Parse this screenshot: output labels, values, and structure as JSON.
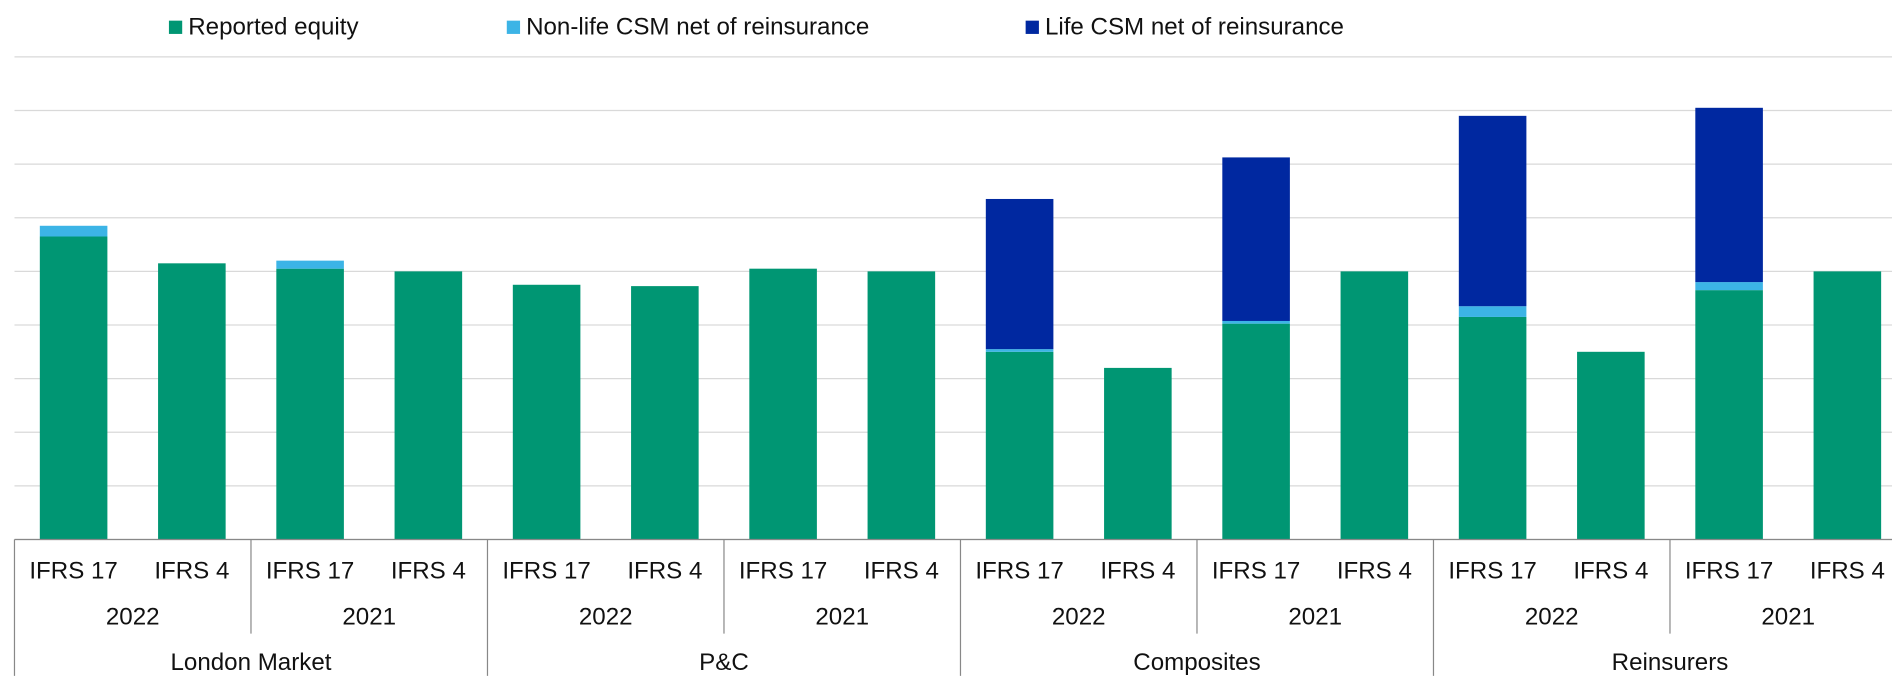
{
  "chart_data": {
    "type": "stacked-bar",
    "categories": [
      "IFRS 17",
      "IFRS 4",
      "IFRS 17",
      "IFRS 4",
      "IFRS 17",
      "IFRS 4",
      "IFRS 17",
      "IFRS 4",
      "IFRS 17",
      "IFRS 4",
      "IFRS 17",
      "IFRS 4",
      "IFRS 17",
      "IFRS 4",
      "IFRS 17",
      "IFRS 4"
    ],
    "years": [
      "2022",
      "2021",
      "2022",
      "2021",
      "2022",
      "2021",
      "2022",
      "2021"
    ],
    "groups": [
      "London Market",
      "P&C",
      "Composites",
      "Reinsurers"
    ],
    "series": [
      {
        "name": "Reported equity",
        "color": "#009673",
        "values": [
          113,
          103,
          101,
          100,
          95,
          94.5,
          101,
          100,
          70,
          64,
          80.5,
          100,
          83,
          70,
          93,
          100
        ]
      },
      {
        "name": "Non-life CSM net of reinsurance",
        "color": "#3cb4e6",
        "values": [
          4,
          null,
          3,
          null,
          null,
          null,
          null,
          null,
          1,
          null,
          1,
          null,
          4,
          null,
          3,
          null
        ]
      },
      {
        "name": "Life CSM net of reinsurance",
        "color": "#0028a0",
        "values": [
          null,
          null,
          null,
          null,
          null,
          null,
          null,
          null,
          56,
          null,
          61,
          null,
          71,
          null,
          65,
          null
        ]
      }
    ],
    "ylim": [
      0,
      180
    ],
    "yticks": [
      0,
      20,
      40,
      60,
      80,
      100,
      120,
      140,
      160,
      180
    ],
    "grid": true,
    "legend": "top"
  }
}
